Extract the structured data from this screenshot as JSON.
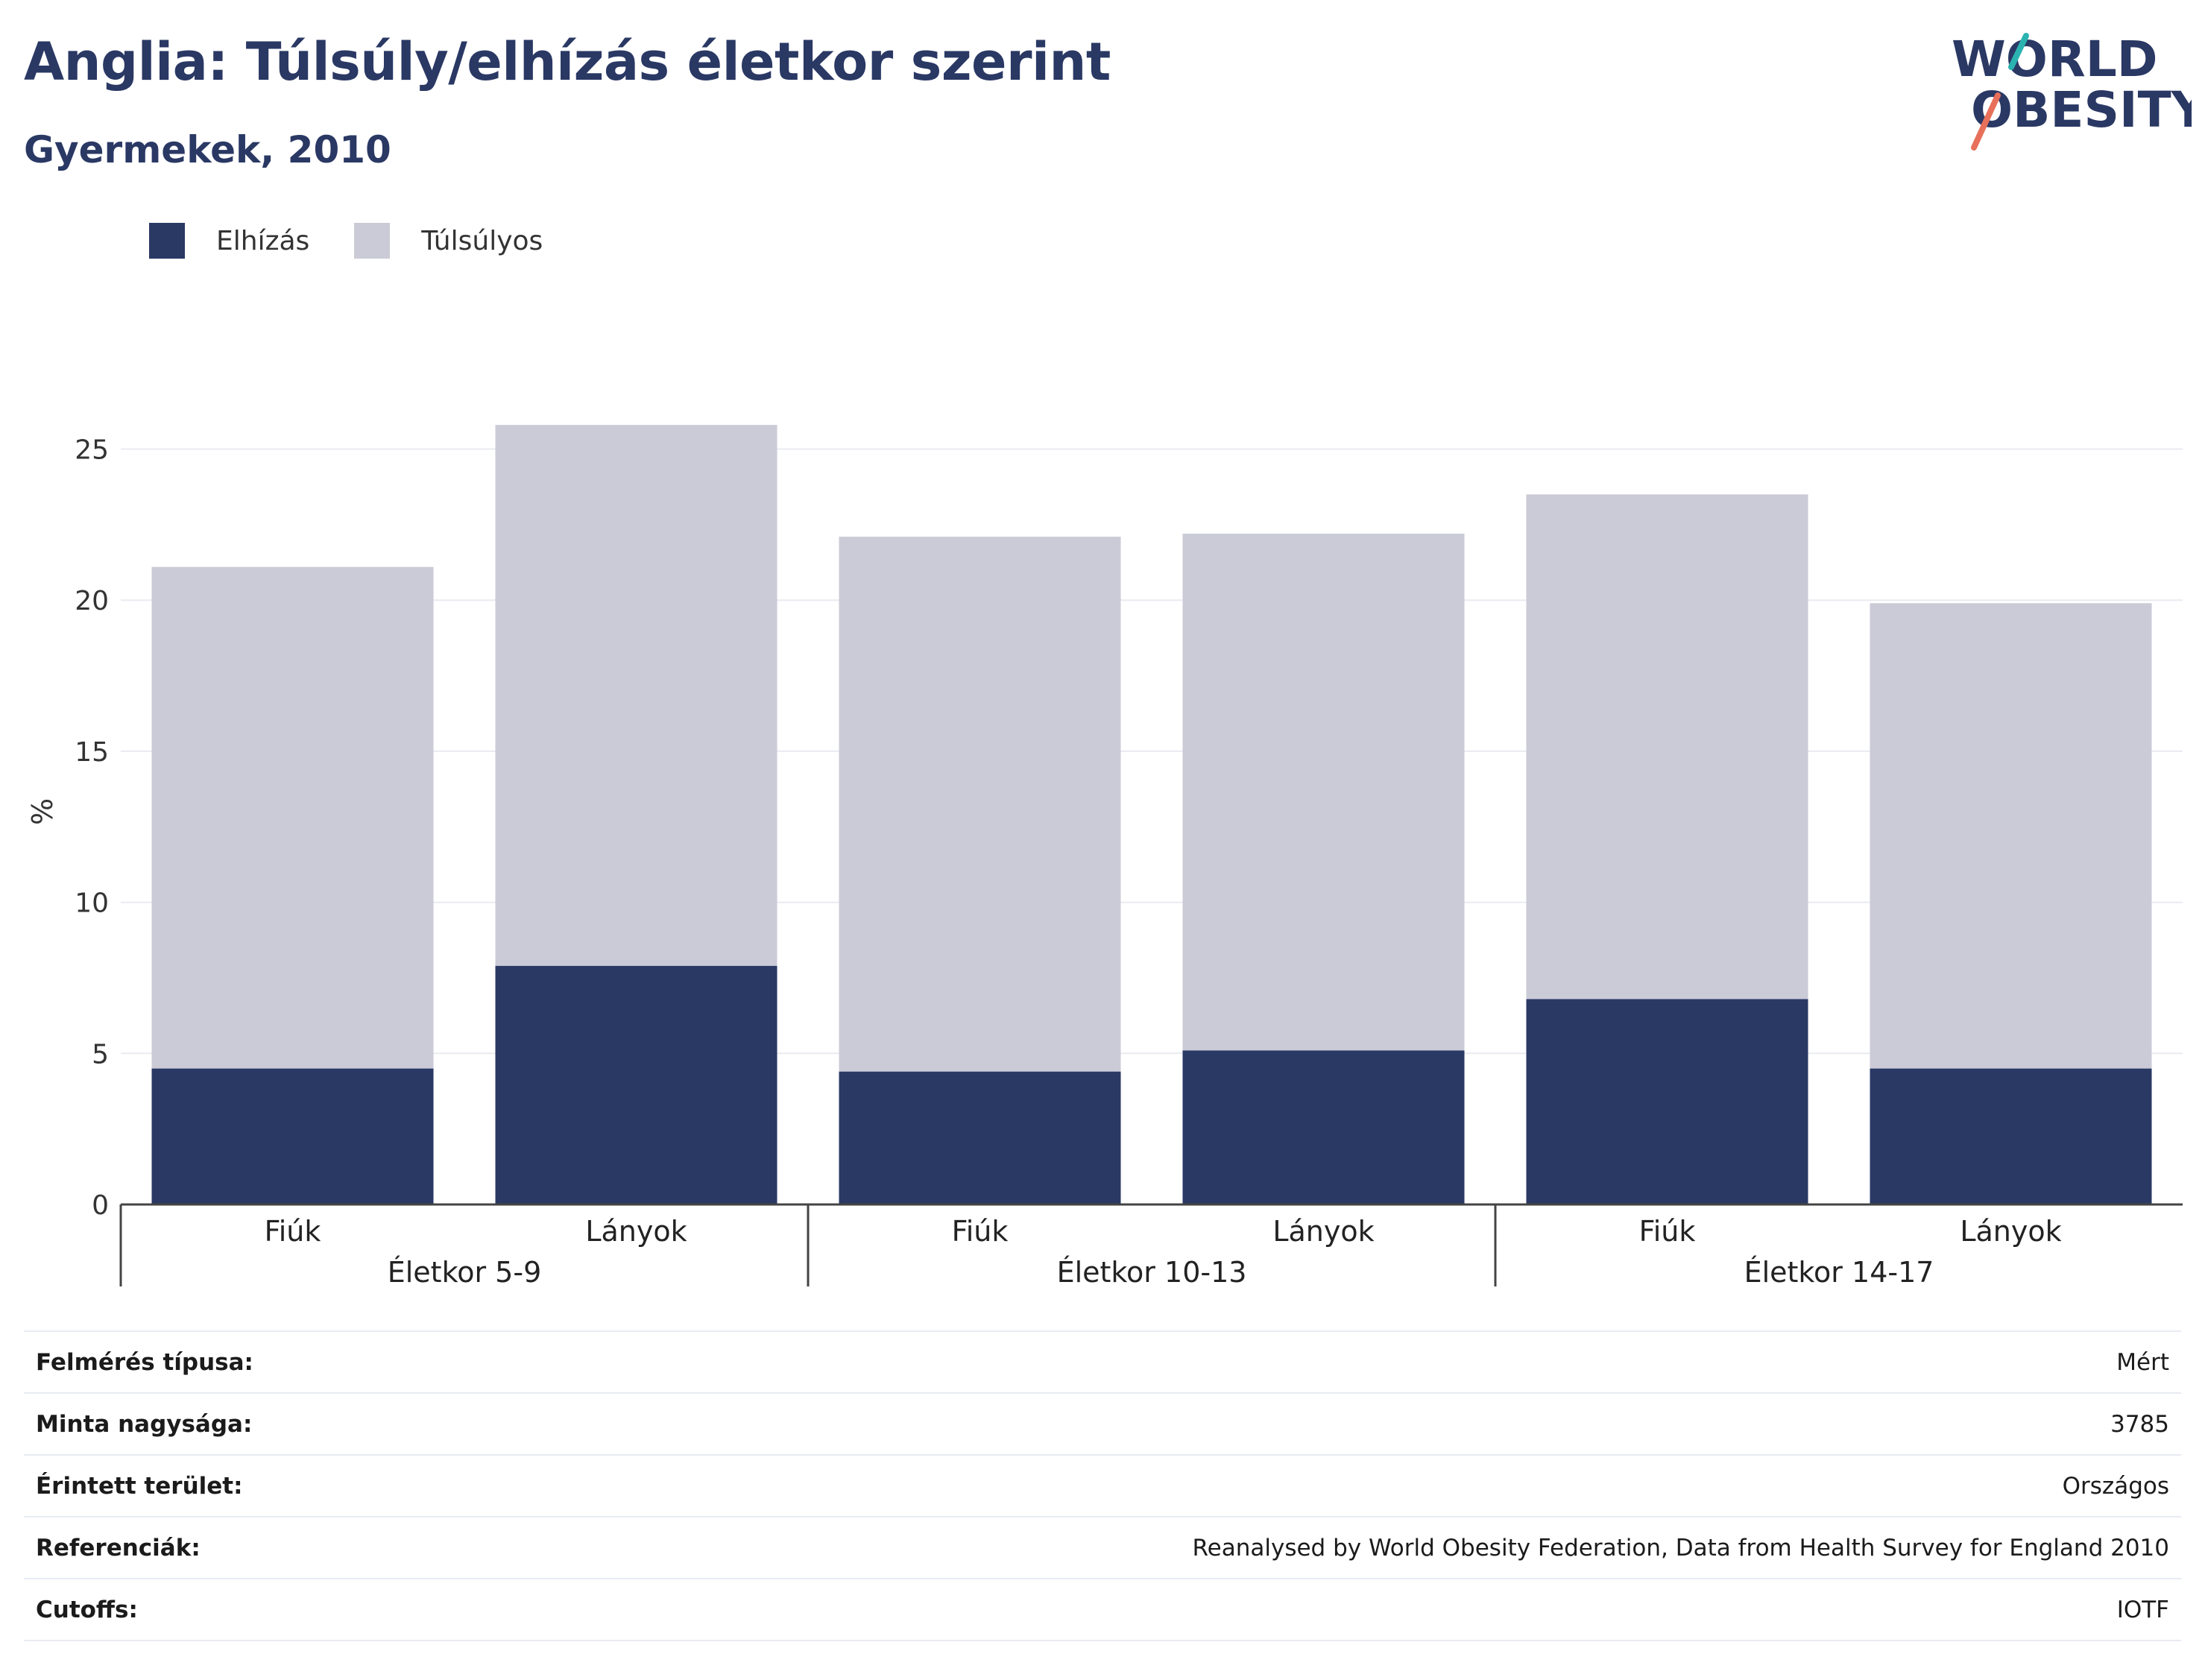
{
  "header": {
    "title": "Anglia: Túlsúly/elhízás életkor szerint",
    "subtitle": "Gyermekek, 2010"
  },
  "logo": {
    "line1": "WORLD",
    "line2": "OBESITY",
    "accent_teal": "#2bb3b1",
    "accent_coral": "#e8705a"
  },
  "legend": {
    "items": [
      {
        "label": "Elhízás",
        "color": "#2a3864"
      },
      {
        "label": "Túlsúlyos",
        "color": "#cacbd7"
      }
    ]
  },
  "chart_data": {
    "type": "bar",
    "stacked": true,
    "ylabel": "%",
    "ylim": [
      0,
      26
    ],
    "yticks": [
      0,
      5,
      10,
      15,
      20,
      25
    ],
    "grid": true,
    "legend_position": "top-left",
    "groups": [
      "Életkor 5-9",
      "Életkor 10-13",
      "Életkor 14-17"
    ],
    "categories": [
      "Fiúk",
      "Lányok",
      "Fiúk",
      "Lányok",
      "Fiúk",
      "Lányok"
    ],
    "series": [
      {
        "name": "Elhízás",
        "color": "#2a3864",
        "values": [
          4.5,
          7.9,
          4.4,
          5.1,
          6.8,
          4.5
        ]
      },
      {
        "name": "Túlsúlyos",
        "color": "#cacbd7",
        "values": [
          16.6,
          17.9,
          17.7,
          17.1,
          16.7,
          15.4
        ]
      }
    ]
  },
  "info": {
    "rows": [
      {
        "key": "Felmérés típusa:",
        "value": "Mért"
      },
      {
        "key": "Minta nagysága:",
        "value": "3785"
      },
      {
        "key": "Érintett terület:",
        "value": "Országos"
      },
      {
        "key": "Referenciák:",
        "value": "Reanalysed by World Obesity Federation, Data from Health Survey for England 2010"
      },
      {
        "key": "Cutoffs:",
        "value": "IOTF"
      }
    ]
  }
}
